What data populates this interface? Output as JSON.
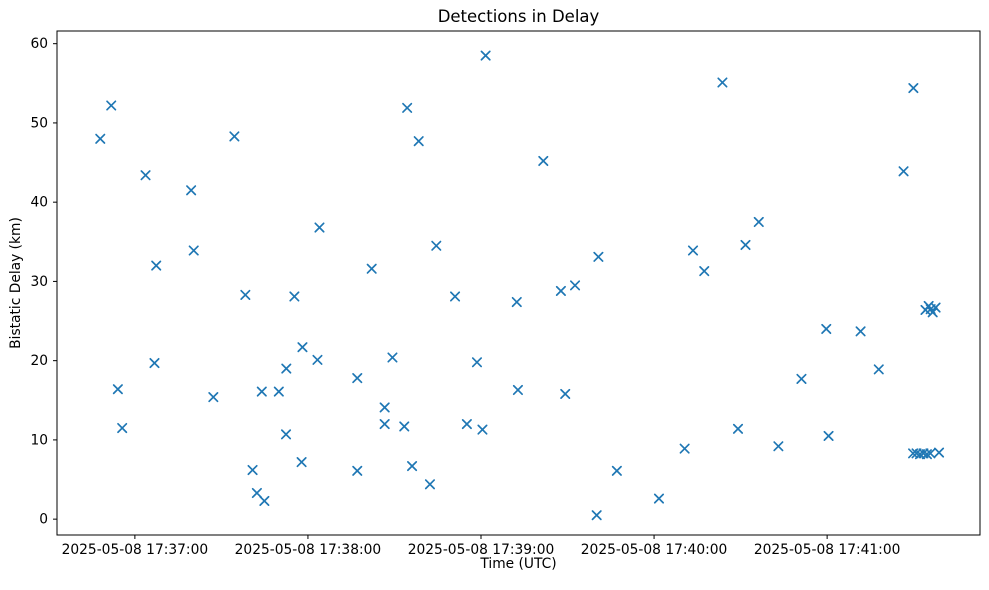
{
  "figure": {
    "background": "#ffffff",
    "spine_color": "#000000",
    "text_color": "#000000"
  },
  "chart_data": {
    "type": "scatter",
    "title": "Detections in Delay",
    "xlabel": "Time (UTC)",
    "ylabel": "Bistatic Delay (km)",
    "marker": "x",
    "marker_color": "#1f77b4",
    "grid": false,
    "legend": null,
    "x_units": "seconds after 2025-05-08 17:37:00 UTC",
    "xlim": [
      -27,
      293
    ],
    "ylim": [
      -2,
      61.6
    ],
    "x_ticks": [
      {
        "value": 0,
        "label": "2025-05-08 17:37:00"
      },
      {
        "value": 60,
        "label": "2025-05-08 17:38:00"
      },
      {
        "value": 120,
        "label": "2025-05-08 17:39:00"
      },
      {
        "value": 180,
        "label": "2025-05-08 17:40:00"
      },
      {
        "value": 240,
        "label": "2025-05-08 17:41:00"
      }
    ],
    "y_ticks": [
      {
        "value": 0,
        "label": "0"
      },
      {
        "value": 10,
        "label": "10"
      },
      {
        "value": 20,
        "label": "20"
      },
      {
        "value": 30,
        "label": "30"
      },
      {
        "value": 40,
        "label": "40"
      },
      {
        "value": 50,
        "label": "50"
      },
      {
        "value": 60,
        "label": "60"
      }
    ],
    "points": [
      [
        -12.0,
        48.0
      ],
      [
        -8.2,
        52.2
      ],
      [
        -5.9,
        16.4
      ],
      [
        -4.4,
        11.5
      ],
      [
        3.7,
        43.4
      ],
      [
        6.8,
        19.7
      ],
      [
        7.4,
        32.0
      ],
      [
        19.5,
        41.5
      ],
      [
        20.4,
        33.9
      ],
      [
        27.2,
        15.4
      ],
      [
        34.5,
        48.3
      ],
      [
        38.3,
        28.3
      ],
      [
        40.8,
        6.2
      ],
      [
        42.3,
        3.3
      ],
      [
        44.0,
        16.1
      ],
      [
        44.9,
        2.3
      ],
      [
        49.9,
        16.1
      ],
      [
        52.4,
        10.7
      ],
      [
        52.5,
        19.0
      ],
      [
        55.3,
        28.1
      ],
      [
        57.8,
        7.2
      ],
      [
        58.1,
        21.7
      ],
      [
        63.3,
        20.1
      ],
      [
        64.0,
        36.8
      ],
      [
        77.1,
        17.8
      ],
      [
        77.1,
        6.1
      ],
      [
        82.1,
        31.6
      ],
      [
        86.6,
        14.1
      ],
      [
        86.6,
        12.0
      ],
      [
        89.3,
        20.4
      ],
      [
        93.4,
        11.7
      ],
      [
        94.4,
        51.9
      ],
      [
        96.1,
        6.7
      ],
      [
        98.4,
        47.7
      ],
      [
        102.3,
        4.4
      ],
      [
        104.5,
        34.5
      ],
      [
        111.0,
        28.1
      ],
      [
        115.1,
        12.0
      ],
      [
        118.6,
        19.8
      ],
      [
        120.5,
        11.3
      ],
      [
        121.6,
        58.5
      ],
      [
        132.4,
        27.4
      ],
      [
        132.8,
        16.3
      ],
      [
        141.6,
        45.2
      ],
      [
        147.7,
        28.8
      ],
      [
        149.2,
        15.8
      ],
      [
        152.6,
        29.5
      ],
      [
        160.1,
        0.5
      ],
      [
        160.7,
        33.1
      ],
      [
        167.1,
        6.1
      ],
      [
        181.7,
        2.6
      ],
      [
        190.6,
        8.9
      ],
      [
        193.5,
        33.9
      ],
      [
        197.4,
        31.3
      ],
      [
        203.7,
        55.1
      ],
      [
        209.1,
        11.4
      ],
      [
        211.7,
        34.6
      ],
      [
        216.3,
        37.5
      ],
      [
        223.1,
        9.2
      ],
      [
        231.1,
        17.7
      ],
      [
        239.7,
        24.0
      ],
      [
        240.5,
        10.5
      ],
      [
        251.6,
        23.7
      ],
      [
        257.9,
        18.9
      ],
      [
        266.5,
        43.9
      ],
      [
        269.9,
        54.4
      ],
      [
        274.1,
        26.4
      ],
      [
        275.2,
        26.9
      ],
      [
        275.9,
        26.5
      ],
      [
        276.6,
        26.1
      ],
      [
        277.6,
        26.7
      ],
      [
        269.8,
        8.3
      ],
      [
        271.0,
        8.3
      ],
      [
        272.2,
        8.2
      ],
      [
        273.4,
        8.3
      ],
      [
        274.6,
        8.2
      ],
      [
        275.8,
        8.3
      ],
      [
        278.8,
        8.4
      ]
    ]
  }
}
